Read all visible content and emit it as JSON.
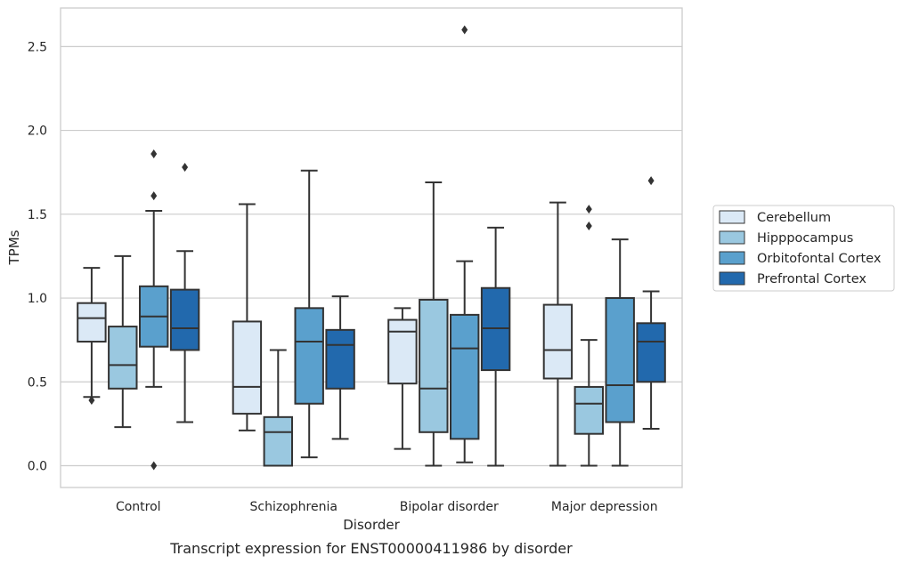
{
  "chart_data": {
    "type": "box",
    "caption": "Transcript expression for ENST00000411986 by disorder",
    "xlabel": "Disorder",
    "ylabel": "TPMs",
    "ylim": [
      -0.13,
      2.73
    ],
    "yticks": [
      0.0,
      0.5,
      1.0,
      1.5,
      2.0,
      2.5
    ],
    "ytick_labels": [
      "0.0",
      "0.5",
      "1.0",
      "1.5",
      "2.0",
      "2.5"
    ],
    "grid": "horizontal",
    "legend_position": "right",
    "categories": [
      "Control",
      "Schizophrenia",
      "Bipolar disorder",
      "Major depression"
    ],
    "series": [
      {
        "name": "Cerebellum",
        "color": "#dbe9f6",
        "boxes": [
          {
            "whislo": 0.41,
            "q1": 0.74,
            "med": 0.88,
            "q3": 0.97,
            "whishi": 1.18,
            "fliers": [
              0.39
            ]
          },
          {
            "whislo": 0.21,
            "q1": 0.31,
            "med": 0.47,
            "q3": 0.86,
            "whishi": 1.56,
            "fliers": []
          },
          {
            "whislo": 0.1,
            "q1": 0.49,
            "med": 0.8,
            "q3": 0.87,
            "whishi": 0.94,
            "fliers": []
          },
          {
            "whislo": 0.0,
            "q1": 0.52,
            "med": 0.69,
            "q3": 0.96,
            "whishi": 1.57,
            "fliers": []
          }
        ]
      },
      {
        "name": "Hipppocampus",
        "color": "#9ac8e0",
        "boxes": [
          {
            "whislo": 0.23,
            "q1": 0.46,
            "med": 0.6,
            "q3": 0.83,
            "whishi": 1.25,
            "fliers": []
          },
          {
            "whislo": 0.0,
            "q1": 0.0,
            "med": 0.2,
            "q3": 0.29,
            "whishi": 0.69,
            "fliers": []
          },
          {
            "whislo": 0.0,
            "q1": 0.2,
            "med": 0.46,
            "q3": 0.99,
            "whishi": 1.69,
            "fliers": []
          },
          {
            "whislo": 0.0,
            "q1": 0.19,
            "med": 0.37,
            "q3": 0.47,
            "whishi": 0.75,
            "fliers": [
              1.43,
              1.53
            ]
          }
        ]
      },
      {
        "name": "Orbitofontal Cortex",
        "color": "#5aa0cd",
        "boxes": [
          {
            "whislo": 0.47,
            "q1": 0.71,
            "med": 0.89,
            "q3": 1.07,
            "whishi": 1.52,
            "fliers": [
              0.0,
              1.61,
              1.86
            ]
          },
          {
            "whislo": 0.05,
            "q1": 0.37,
            "med": 0.74,
            "q3": 0.94,
            "whishi": 1.76,
            "fliers": []
          },
          {
            "whislo": 0.02,
            "q1": 0.16,
            "med": 0.7,
            "q3": 0.9,
            "whishi": 1.22,
            "fliers": [
              2.6
            ]
          },
          {
            "whislo": 0.0,
            "q1": 0.26,
            "med": 0.48,
            "q3": 1.0,
            "whishi": 1.35,
            "fliers": []
          }
        ]
      },
      {
        "name": "Prefrontal Cortex",
        "color": "#2269ad",
        "boxes": [
          {
            "whislo": 0.26,
            "q1": 0.69,
            "med": 0.82,
            "q3": 1.05,
            "whishi": 1.28,
            "fliers": [
              1.78
            ]
          },
          {
            "whislo": 0.16,
            "q1": 0.46,
            "med": 0.72,
            "q3": 0.81,
            "whishi": 1.01,
            "fliers": []
          },
          {
            "whislo": 0.0,
            "q1": 0.57,
            "med": 0.82,
            "q3": 1.06,
            "whishi": 1.42,
            "fliers": []
          },
          {
            "whislo": 0.22,
            "q1": 0.5,
            "med": 0.74,
            "q3": 0.85,
            "whishi": 1.04,
            "fliers": [
              1.7
            ]
          }
        ]
      }
    ]
  }
}
